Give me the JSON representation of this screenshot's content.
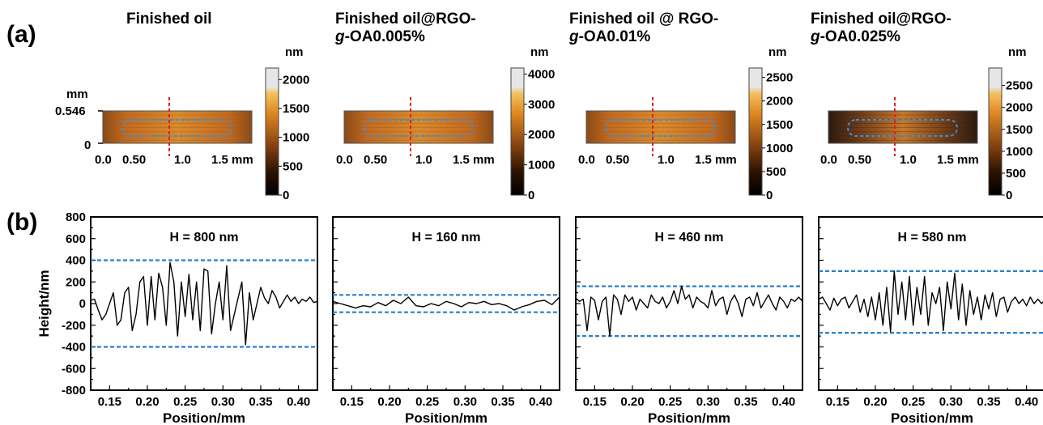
{
  "panel_labels": {
    "a": "(a)",
    "b": "(b)"
  },
  "chart_data": [
    {
      "type": "heatmap",
      "panel": "(a)",
      "title_lines": [
        "Finished oil"
      ],
      "y_unit": "mm",
      "y_ticks": [
        "0.546",
        "0"
      ],
      "x_ticks": [
        "0.0",
        "0.50",
        "1.0",
        "1.5 mm"
      ],
      "colorbar": {
        "unit": "nm",
        "ticks": [
          "2000",
          "1500",
          "1000",
          "500",
          "0"
        ],
        "max": 2200
      }
    },
    {
      "type": "heatmap",
      "panel": "(a)",
      "title_lines": [
        "Finished oil@RGO-",
        "g-OA0.005%"
      ],
      "x_ticks": [
        "0.0",
        "0.50",
        "1.0",
        "1.5 mm"
      ],
      "colorbar": {
        "unit": "nm",
        "ticks": [
          "4000",
          "3000",
          "2000",
          "1000",
          "0"
        ],
        "max": 4200
      }
    },
    {
      "type": "heatmap",
      "panel": "(a)",
      "title_lines": [
        "Finished oil @ RGO-",
        "g-OA0.01%"
      ],
      "x_ticks": [
        "0.0",
        "0.50",
        "1.0",
        "1.5 mm"
      ],
      "colorbar": {
        "unit": "nm",
        "ticks": [
          "2500",
          "2000",
          "1500",
          "1000",
          "500",
          "0"
        ],
        "max": 2700
      }
    },
    {
      "type": "heatmap",
      "panel": "(a)",
      "title_lines": [
        "Finished oil@RGO-",
        "g-OA0.025%"
      ],
      "x_ticks": [
        "0.0",
        "0.50",
        "1.0",
        "1.5 mm"
      ],
      "colorbar": {
        "unit": "nm",
        "ticks": [
          "2500",
          "2000",
          "1500",
          "1000",
          "500",
          "0"
        ],
        "max": 2900
      }
    },
    {
      "type": "line",
      "panel": "(b)",
      "annotation": "H = 800 nm",
      "xlabel": "Position/mm",
      "ylabel": "Height/nm",
      "xlim": [
        0.125,
        0.425
      ],
      "ylim": [
        -800,
        800
      ],
      "x_ticks": [
        "0.15",
        "0.20",
        "0.25",
        "0.30",
        "0.35",
        "0.40"
      ],
      "y_ticks": [
        "800",
        "600",
        "400",
        "200",
        "0",
        "-200",
        "-400",
        "-600",
        "-800"
      ],
      "reference_lines": [
        400,
        -400
      ],
      "profile": {
        "x": [
          0.125,
          0.13,
          0.135,
          0.14,
          0.145,
          0.15,
          0.155,
          0.16,
          0.165,
          0.17,
          0.175,
          0.18,
          0.185,
          0.19,
          0.195,
          0.2,
          0.205,
          0.21,
          0.215,
          0.22,
          0.225,
          0.23,
          0.235,
          0.24,
          0.245,
          0.25,
          0.255,
          0.26,
          0.265,
          0.27,
          0.275,
          0.28,
          0.285,
          0.29,
          0.295,
          0.3,
          0.305,
          0.31,
          0.315,
          0.32,
          0.325,
          0.33,
          0.335,
          0.34,
          0.345,
          0.35,
          0.355,
          0.36,
          0.365,
          0.37,
          0.375,
          0.38,
          0.385,
          0.39,
          0.395,
          0.4,
          0.405,
          0.41,
          0.415,
          0.42,
          0.425
        ],
        "y": [
          30,
          40,
          -60,
          -150,
          -100,
          0,
          100,
          -200,
          -150,
          100,
          150,
          -250,
          -100,
          200,
          250,
          -200,
          250,
          -150,
          280,
          150,
          -200,
          380,
          200,
          -300,
          200,
          -120,
          270,
          -150,
          200,
          -250,
          320,
          300,
          -280,
          0,
          200,
          -150,
          350,
          -250,
          -100,
          50,
          200,
          -380,
          100,
          -150,
          0,
          150,
          50,
          0,
          120,
          60,
          -40,
          20,
          80,
          20,
          60,
          0,
          40,
          20,
          60,
          10,
          20
        ]
      }
    },
    {
      "type": "line",
      "panel": "(b)",
      "annotation": "H = 160 nm",
      "xlabel": "Position/mm",
      "xlim": [
        0.125,
        0.425
      ],
      "ylim": [
        -800,
        800
      ],
      "x_ticks": [
        "0.15",
        "0.20",
        "0.25",
        "0.30",
        "0.35",
        "0.40"
      ],
      "reference_lines": [
        80,
        -80
      ],
      "profile": {
        "x": [
          0.125,
          0.135,
          0.145,
          0.155,
          0.165,
          0.175,
          0.185,
          0.195,
          0.205,
          0.215,
          0.225,
          0.235,
          0.245,
          0.255,
          0.265,
          0.275,
          0.285,
          0.295,
          0.305,
          0.315,
          0.325,
          0.335,
          0.345,
          0.355,
          0.365,
          0.375,
          0.385,
          0.395,
          0.405,
          0.415,
          0.425
        ],
        "y": [
          20,
          0,
          -20,
          -40,
          -20,
          -30,
          10,
          -20,
          30,
          0,
          60,
          -20,
          -30,
          0,
          -20,
          20,
          0,
          -30,
          10,
          0,
          20,
          -10,
          0,
          -20,
          -60,
          -30,
          -10,
          20,
          30,
          -10,
          60
        ]
      }
    },
    {
      "type": "line",
      "panel": "(b)",
      "annotation": "H = 460 nm",
      "xlabel": "Position/mm",
      "xlim": [
        0.125,
        0.425
      ],
      "ylim": [
        -800,
        800
      ],
      "x_ticks": [
        "0.15",
        "0.20",
        "0.25",
        "0.30",
        "0.35",
        "0.40"
      ],
      "reference_lines": [
        160,
        -300
      ],
      "profile": {
        "x": [
          0.125,
          0.13,
          0.135,
          0.14,
          0.145,
          0.15,
          0.155,
          0.16,
          0.165,
          0.17,
          0.175,
          0.18,
          0.185,
          0.19,
          0.195,
          0.2,
          0.205,
          0.21,
          0.215,
          0.22,
          0.225,
          0.23,
          0.235,
          0.24,
          0.245,
          0.25,
          0.255,
          0.26,
          0.265,
          0.27,
          0.275,
          0.28,
          0.285,
          0.29,
          0.295,
          0.3,
          0.305,
          0.31,
          0.315,
          0.32,
          0.325,
          0.33,
          0.335,
          0.34,
          0.345,
          0.35,
          0.355,
          0.36,
          0.365,
          0.37,
          0.375,
          0.38,
          0.385,
          0.39,
          0.395,
          0.4,
          0.405,
          0.41,
          0.415,
          0.42,
          0.425
        ],
        "y": [
          50,
          20,
          40,
          -250,
          60,
          30,
          -150,
          20,
          60,
          -300,
          80,
          40,
          -100,
          80,
          20,
          60,
          -60,
          40,
          0,
          -40,
          80,
          20,
          0,
          60,
          -40,
          20,
          120,
          0,
          160,
          40,
          80,
          -40,
          60,
          20,
          0,
          -40,
          120,
          -20,
          40,
          60,
          -100,
          20,
          80,
          0,
          -120,
          40,
          60,
          -20,
          100,
          -40,
          20,
          80,
          0,
          -60,
          60,
          20,
          -40,
          40,
          20,
          60,
          20
        ]
      }
    },
    {
      "type": "line",
      "panel": "(b)",
      "annotation": "H = 580 nm",
      "xlabel": "Position/mm",
      "xlim": [
        0.125,
        0.425
      ],
      "ylim": [
        -800,
        800
      ],
      "x_ticks": [
        "0.15",
        "0.20",
        "0.25",
        "0.30",
        "0.35",
        "0.40"
      ],
      "reference_lines": [
        300,
        -270
      ],
      "profile": {
        "x": [
          0.125,
          0.13,
          0.135,
          0.14,
          0.145,
          0.15,
          0.155,
          0.16,
          0.165,
          0.17,
          0.175,
          0.18,
          0.185,
          0.19,
          0.195,
          0.2,
          0.205,
          0.21,
          0.215,
          0.22,
          0.225,
          0.23,
          0.235,
          0.24,
          0.245,
          0.25,
          0.255,
          0.26,
          0.265,
          0.27,
          0.275,
          0.28,
          0.285,
          0.29,
          0.295,
          0.3,
          0.305,
          0.31,
          0.315,
          0.32,
          0.325,
          0.33,
          0.335,
          0.34,
          0.345,
          0.35,
          0.355,
          0.36,
          0.365,
          0.37,
          0.375,
          0.38,
          0.385,
          0.39,
          0.395,
          0.4,
          0.405,
          0.41,
          0.415,
          0.42,
          0.425
        ],
        "y": [
          40,
          60,
          0,
          -60,
          50,
          -20,
          40,
          60,
          -40,
          20,
          80,
          -80,
          40,
          -120,
          60,
          -150,
          100,
          -200,
          150,
          -260,
          300,
          -100,
          200,
          -150,
          250,
          -200,
          150,
          -100,
          250,
          -200,
          100,
          0,
          150,
          -250,
          200,
          -50,
          280,
          -150,
          180,
          -200,
          120,
          -100,
          60,
          -150,
          80,
          -50,
          100,
          -120,
          40,
          60,
          -80,
          20,
          60,
          0,
          40,
          -20,
          60,
          0,
          40,
          0,
          40
        ]
      }
    }
  ]
}
